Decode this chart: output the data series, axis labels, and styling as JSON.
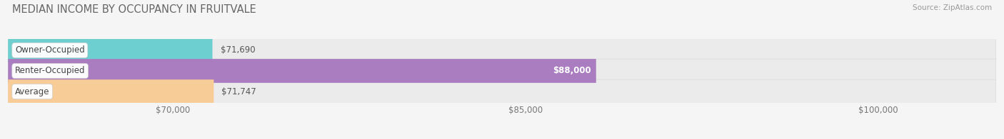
{
  "title": "MEDIAN INCOME BY OCCUPANCY IN FRUITVALE",
  "source": "Source: ZipAtlas.com",
  "categories": [
    "Owner-Occupied",
    "Renter-Occupied",
    "Average"
  ],
  "values": [
    71690,
    88000,
    71747
  ],
  "bar_colors": [
    "#6dcfcf",
    "#a97dbf",
    "#f7cc96"
  ],
  "bar_labels": [
    "$71,690",
    "$88,000",
    "$71,747"
  ],
  "label_inside": [
    false,
    true,
    false
  ],
  "x_min": 63000,
  "x_max": 105000,
  "x_ticks": [
    70000,
    85000,
    100000
  ],
  "x_tick_labels": [
    "$70,000",
    "$85,000",
    "$100,000"
  ],
  "background_color": "#f5f5f5",
  "bar_bg_color": "#ebebeb",
  "bar_border_color": "#d8d8d8",
  "bar_height": 0.58,
  "title_fontsize": 10.5,
  "label_fontsize": 8.5,
  "tick_fontsize": 8.5,
  "cat_fontsize": 8.5
}
